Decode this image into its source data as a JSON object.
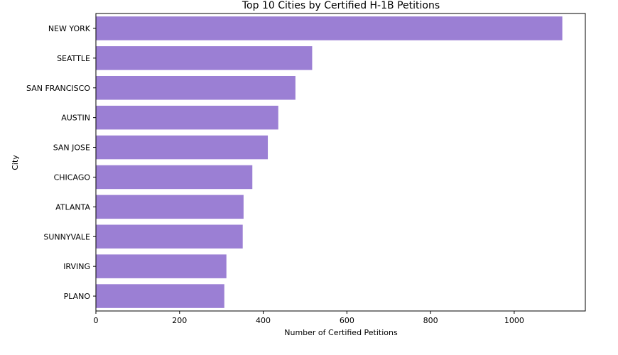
{
  "chart_data": {
    "type": "bar",
    "orientation": "horizontal",
    "title": "Top 10 Cities by Certified H-1B Petitions",
    "xlabel": "Number of Certified Petitions",
    "ylabel": "City",
    "categories": [
      "NEW YORK",
      "SEATTLE",
      "SAN FRANCISCO",
      "AUSTIN",
      "SAN JOSE",
      "CHICAGO",
      "ATLANTA",
      "SUNNYVALE",
      "IRVING",
      "PLANO"
    ],
    "values": [
      1115,
      517,
      477,
      436,
      411,
      374,
      353,
      351,
      312,
      307
    ],
    "xlim": [
      0,
      1170
    ],
    "xticks": [
      0,
      200,
      400,
      600,
      800,
      1000
    ],
    "grid": false,
    "bar_color": "#9b7fd4"
  }
}
